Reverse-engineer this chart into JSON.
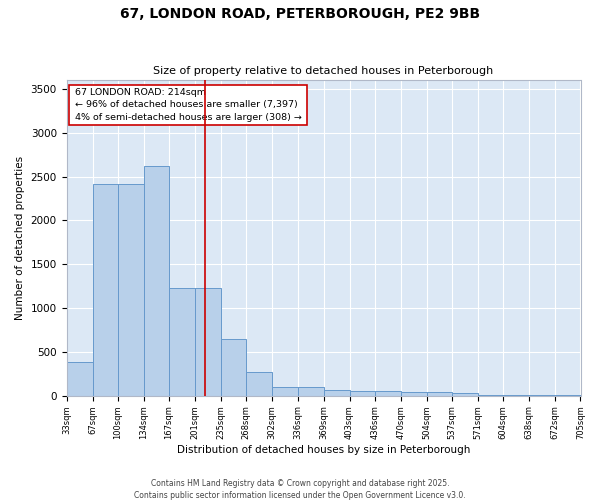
{
  "title_line1": "67, LONDON ROAD, PETERBOROUGH, PE2 9BB",
  "title_line2": "Size of property relative to detached houses in Peterborough",
  "xlabel": "Distribution of detached houses by size in Peterborough",
  "ylabel": "Number of detached properties",
  "annotation_title": "67 LONDON ROAD: 214sqm",
  "annotation_line2": "← 96% of detached houses are smaller (7,397)",
  "annotation_line3": "4% of semi-detached houses are larger (308) →",
  "footnote_line1": "Contains HM Land Registry data © Crown copyright and database right 2025.",
  "footnote_line2": "Contains public sector information licensed under the Open Government Licence v3.0.",
  "bins_left": [
    33,
    67,
    100,
    134,
    167,
    201,
    235,
    268,
    302,
    336,
    369,
    403,
    436,
    470,
    504,
    537,
    571,
    604,
    638,
    672
  ],
  "bins_right": [
    67,
    100,
    134,
    167,
    201,
    235,
    268,
    302,
    336,
    369,
    403,
    436,
    470,
    504,
    537,
    571,
    604,
    638,
    672,
    705
  ],
  "heights": [
    390,
    2420,
    2420,
    2620,
    1230,
    1230,
    645,
    265,
    100,
    100,
    60,
    55,
    55,
    40,
    40,
    30,
    10,
    10,
    5,
    3
  ],
  "tick_labels": [
    "33sqm",
    "67sqm",
    "100sqm",
    "134sqm",
    "167sqm",
    "201sqm",
    "235sqm",
    "268sqm",
    "302sqm",
    "336sqm",
    "369sqm",
    "403sqm",
    "436sqm",
    "470sqm",
    "504sqm",
    "537sqm",
    "571sqm",
    "604sqm",
    "638sqm",
    "672sqm",
    "705sqm"
  ],
  "tick_positions": [
    33,
    67,
    100,
    134,
    167,
    201,
    235,
    268,
    302,
    336,
    369,
    403,
    436,
    470,
    504,
    537,
    571,
    604,
    638,
    672,
    705
  ],
  "bar_color": "#b8d0ea",
  "bar_edge_color": "#6699cc",
  "vline_color": "#cc0000",
  "vline_x": 214,
  "annotation_box_color": "#cc0000",
  "background_color": "#dce8f5",
  "ylim": [
    0,
    3600
  ],
  "xlim": [
    33,
    705
  ],
  "yticks": [
    0,
    500,
    1000,
    1500,
    2000,
    2500,
    3000,
    3500
  ]
}
